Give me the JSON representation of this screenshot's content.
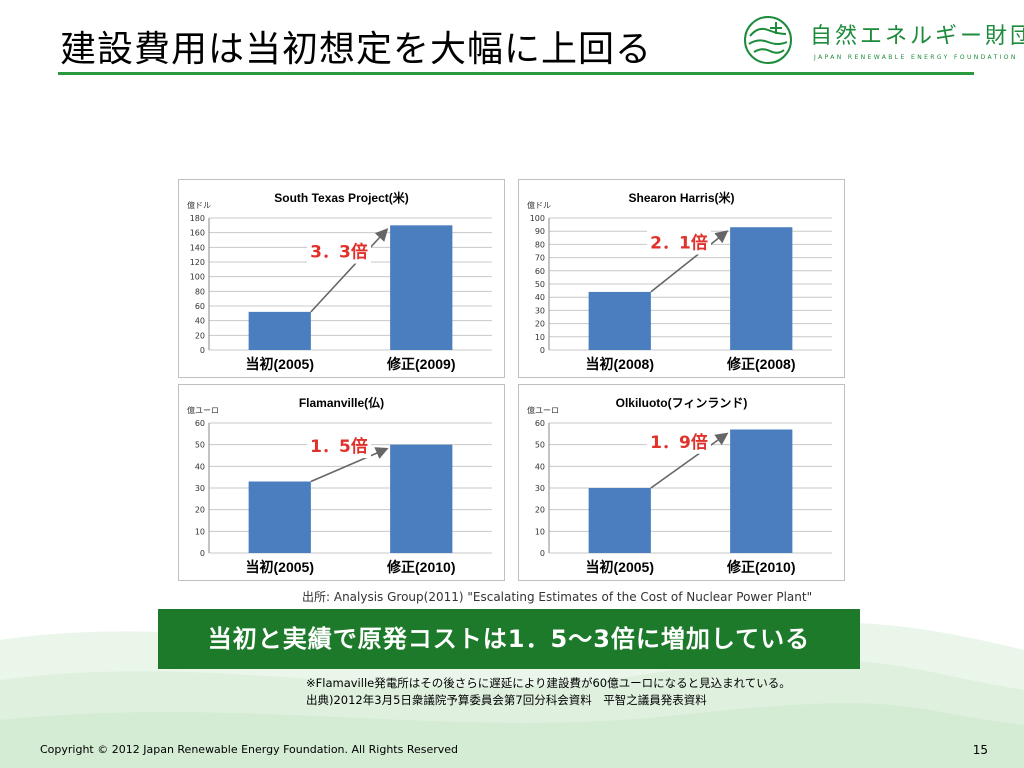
{
  "slide": {
    "title": "建設費用は当初想定を大幅に上回る",
    "logo_name": "自然エネルギー財団",
    "logo_sub": "JAPAN RENEWABLE ENERGY FOUNDATION",
    "source": "出所: Analysis Group(2011) \"Escalating Estimates of the Cost of Nuclear Power Plant\"",
    "banner": "当初と実績で原発コストは1．5～3倍に増加している",
    "note_line1": "※Flamaville発電所はその後さらに遅延により建設費が60億ユーロになると見込まれている。",
    "note_line2": "出典)2012年3月5日衆議院予算委員会第7回分科会資料　平智之議員発表資料",
    "footer": "Copyright © 2012 Japan Renewable Energy Foundation. All Rights Reserved",
    "page_number": "15"
  },
  "colors": {
    "accent_green": "#2b9a3e",
    "banner_green": "#1d7a2b",
    "bar_blue": "#4a7ebf",
    "ratio_red": "#e0312b"
  },
  "chart_data": [
    {
      "type": "bar",
      "title": "South Texas Project(米)",
      "unit": "億ドル",
      "categories": [
        "当初(2005)",
        "修正(2009)"
      ],
      "values": [
        52,
        170
      ],
      "ylim": [
        0,
        180
      ],
      "yticks": [
        0,
        20,
        40,
        60,
        80,
        100,
        120,
        140,
        160,
        180
      ],
      "annotation": "3．3倍",
      "grid": true
    },
    {
      "type": "bar",
      "title": "Shearon Harris(米)",
      "unit": "億ドル",
      "categories": [
        "当初(2008)",
        "修正(2008)"
      ],
      "values": [
        44,
        93
      ],
      "ylim": [
        0,
        100
      ],
      "yticks": [
        0,
        10,
        20,
        30,
        40,
        50,
        60,
        70,
        80,
        90,
        100
      ],
      "annotation": "2．1倍",
      "grid": true
    },
    {
      "type": "bar",
      "title": "Flamanville(仏)",
      "unit": "億ユーロ",
      "categories": [
        "当初(2005)",
        "修正(2010)"
      ],
      "values": [
        33,
        50
      ],
      "ylim": [
        0,
        60
      ],
      "yticks": [
        0,
        10,
        20,
        30,
        40,
        50,
        60
      ],
      "annotation": "1．5倍",
      "grid": true
    },
    {
      "type": "bar",
      "title": "Olkiluoto(フィンランド)",
      "unit": "億ユーロ",
      "categories": [
        "当初(2005)",
        "修正(2010)"
      ],
      "values": [
        30,
        57
      ],
      "ylim": [
        0,
        60
      ],
      "yticks": [
        0,
        10,
        20,
        30,
        40,
        50,
        60
      ],
      "annotation": "1．9倍",
      "grid": true
    }
  ]
}
